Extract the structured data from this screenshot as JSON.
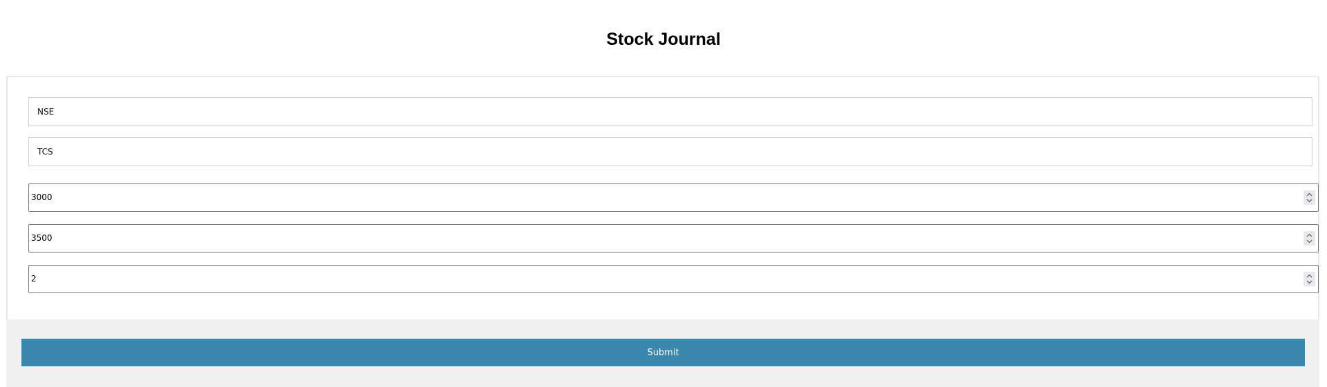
{
  "page": {
    "title": "Stock Journal"
  },
  "form": {
    "exchange": "NSE",
    "symbol": "TCS",
    "buy_price": "3000",
    "sell_price": "3500",
    "quantity": "2"
  },
  "actions": {
    "submit_label": "Submit"
  },
  "colors": {
    "submit_background": "#3a87ad",
    "footer_background": "#f0f0f0"
  },
  "icons": {
    "stepper": "up-down-chevron-icon"
  }
}
